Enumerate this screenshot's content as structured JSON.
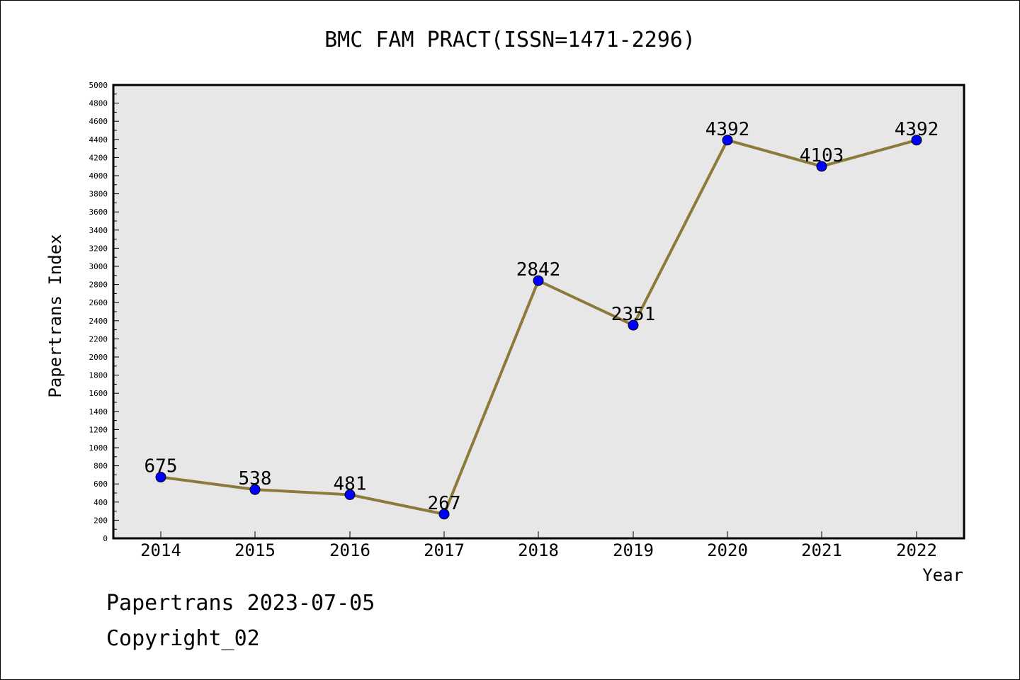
{
  "chart_data": {
    "type": "line",
    "title": "BMC FAM PRACT(ISSN=1471-2296)",
    "xlabel": "Year",
    "ylabel": "Papertrans Index",
    "categories": [
      "2014",
      "2015",
      "2016",
      "2017",
      "2018",
      "2019",
      "2020",
      "2021",
      "2022"
    ],
    "values": [
      675,
      538,
      481,
      267,
      2842,
      2351,
      4392,
      4103,
      4392
    ],
    "ylim": [
      0,
      5000
    ],
    "ytick_step": 200,
    "grid": false,
    "legend": "none",
    "colors": {
      "line": "#8b7a3a",
      "marker": "#0000ff",
      "plot_background": "#e7e7e7"
    }
  },
  "footer": {
    "line1": "Papertrans 2023-07-05",
    "line2": "Copyright_02"
  }
}
